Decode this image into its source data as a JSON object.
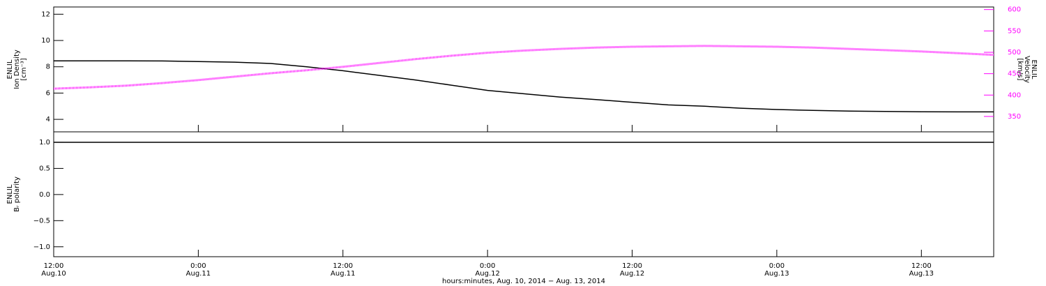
{
  "chart_data": [
    {
      "type": "line",
      "ylabel": [
        "ENLIL",
        "Ion Density",
        "[cm⁻³]"
      ],
      "y2label": [
        "ENLIL",
        "Velocity",
        "[km/s]"
      ],
      "x": [
        12,
        15,
        18,
        21,
        24,
        27,
        30,
        33,
        36,
        39,
        42,
        45,
        48,
        51,
        54,
        57,
        60,
        63,
        66,
        69,
        72,
        75,
        78,
        81,
        84,
        87,
        90
      ],
      "xlim": [
        12,
        90
      ],
      "ylim": [
        3.05,
        12.55
      ],
      "yticks": [
        4,
        6,
        8,
        10,
        12
      ],
      "y2lim": [
        314,
        606
      ],
      "y2ticks": [
        350,
        400,
        450,
        500,
        550,
        600
      ],
      "y2color": "#ff00ff",
      "series": [
        {
          "name": "Ion Density",
          "color": "#000000",
          "values": [
            8.45,
            8.45,
            8.45,
            8.44,
            8.4,
            8.35,
            8.25,
            8.0,
            7.7,
            7.35,
            7.0,
            6.6,
            6.2,
            5.95,
            5.7,
            5.5,
            5.3,
            5.1,
            5.0,
            4.85,
            4.75,
            4.68,
            4.63,
            4.6,
            4.58,
            4.57,
            4.57
          ]
        },
        {
          "name": "Velocity",
          "color": "#ff00ff",
          "axis": "y2",
          "values": [
            415,
            418,
            422,
            428,
            435,
            443,
            451,
            458,
            466,
            475,
            484,
            492,
            499,
            504,
            508,
            511,
            513,
            514,
            515,
            514,
            513,
            511,
            508,
            505,
            502,
            498,
            494
          ]
        }
      ]
    },
    {
      "type": "line",
      "ylabel": [
        "ENLIL",
        "Bᵣ polarity"
      ],
      "xlabel": "hours:minutes, Aug. 10, 2014 − Aug. 13, 2014",
      "x": [
        12,
        15,
        18,
        21,
        24,
        27,
        30,
        33,
        36,
        39,
        42,
        45,
        48,
        51,
        54,
        57,
        60,
        63,
        66,
        69,
        72,
        75,
        78,
        81,
        84,
        87,
        90
      ],
      "xlim": [
        12,
        90
      ],
      "xticks": [
        {
          "value": 12,
          "label": "12:00"
        },
        {
          "value": 24,
          "label": "0:00"
        },
        {
          "value": 36,
          "label": "12:00"
        },
        {
          "value": 48,
          "label": "0:00"
        },
        {
          "value": 60,
          "label": "12:00"
        },
        {
          "value": 72,
          "label": "0:00"
        },
        {
          "value": 84,
          "label": "12:00"
        }
      ],
      "xtick_dates": [
        "Aug.10",
        "Aug.11",
        "Aug.11",
        "Aug.12",
        "Aug.12",
        "Aug.13",
        "Aug.13"
      ],
      "ylim": [
        -1.19,
        1.2
      ],
      "yticks": [
        {
          "value": -1,
          "label": "−1.0"
        },
        {
          "value": -0.5,
          "label": "−0.5"
        },
        {
          "value": 0,
          "label": "0.0"
        },
        {
          "value": 0.5,
          "label": "0.5"
        },
        {
          "value": 1,
          "label": "1.0"
        }
      ],
      "series": [
        {
          "name": "Br polarity",
          "color": "#000000",
          "values": [
            1,
            1,
            1,
            1,
            1,
            1,
            1,
            1,
            1,
            1,
            1,
            1,
            1,
            1,
            1,
            1,
            1,
            1,
            1,
            1,
            1,
            1,
            1,
            1,
            1,
            1,
            1
          ]
        }
      ]
    }
  ]
}
